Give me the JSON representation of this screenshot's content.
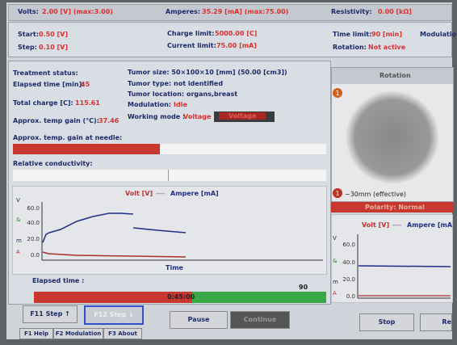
{
  "status_bar": {
    "volts_label": "Volts:",
    "volts_value": "2.00 [V] (max:3.00)",
    "amperes_label": "Amperes:",
    "amperes_value": "35.29 [mA] (max:75.00)",
    "resistivity_label": "Resistivity:",
    "resistivity_value": "0.00 [kΩ]"
  },
  "settings": {
    "start_label": "Start:",
    "start_value": "0.50 [V]",
    "step_label": "Step:",
    "step_value": "0.10 [V]",
    "charge_limit_label": "Charge limit:",
    "charge_limit_value": "5000.00 [C]",
    "current_limit_label": "Current limit:",
    "current_limit_value": "75.00 [mA]",
    "time_limit_label": "Time limit:",
    "time_limit_value": "90 [min]",
    "modulation_label": "Modulatio",
    "rotation_label": "Rotation:",
    "rotation_value": "Not active"
  },
  "treatment": {
    "title": "Treatment status:",
    "elapsed_label": "Elapsed time [min]:",
    "elapsed_value": "45",
    "charge_label": "Total charge [C]:",
    "charge_value": "115.61",
    "temp_label": "Approx. temp gain (°C):",
    "temp_value": "37.46"
  },
  "tumor": {
    "size": "Tumor size: 50×100×10 [mm] (50.00 [cm3])",
    "type": "Tumor type: not identified",
    "location": "Tumor location: organs,breast",
    "modulation_label": "Modulation:",
    "modulation_value": "Idle",
    "mode_label": "Working mode :",
    "mode_value": "Voltage",
    "mode_button": "Voltage"
  },
  "gauges": {
    "temp_needle": "Approx. temp. gain at needle:",
    "conductivity": "Relative conductivity:"
  },
  "main_chart": {
    "legend_volt": "Volt [V]",
    "legend_sep": "----",
    "legend_ampere": "Ampere [mA]",
    "yticks": [
      "60.0",
      "40.0",
      "20.0",
      "0.0"
    ],
    "axis_letters": [
      "V",
      "&",
      "m",
      "A"
    ],
    "x_label": "Time"
  },
  "rotation": {
    "title": "Rotation",
    "marker_top": "1",
    "marker_bottom": "1",
    "effective": "~30mm (effective)",
    "polarity": "Polarity: Normal"
  },
  "small_chart": {
    "legend_volt": "Volt [V]",
    "legend_sep": "----",
    "legend_ampere": "Ampere [mA]",
    "yticks": [
      "60.0",
      "40.0",
      "20.0",
      "0.0"
    ],
    "axis_letters": [
      "V",
      "&",
      "m",
      "A"
    ]
  },
  "progress": {
    "label": "Elapsed time :",
    "limit": "90",
    "time": "0:45:00"
  },
  "buttons": {
    "step_up": "F11 Step ↑",
    "step_down": "F12 Step ↓",
    "pause": "Pause",
    "continue": "Continue",
    "stop": "Stop",
    "other": "Re"
  },
  "tabs": [
    "F1 Help",
    "F2 Modulation",
    "F3 About"
  ]
}
